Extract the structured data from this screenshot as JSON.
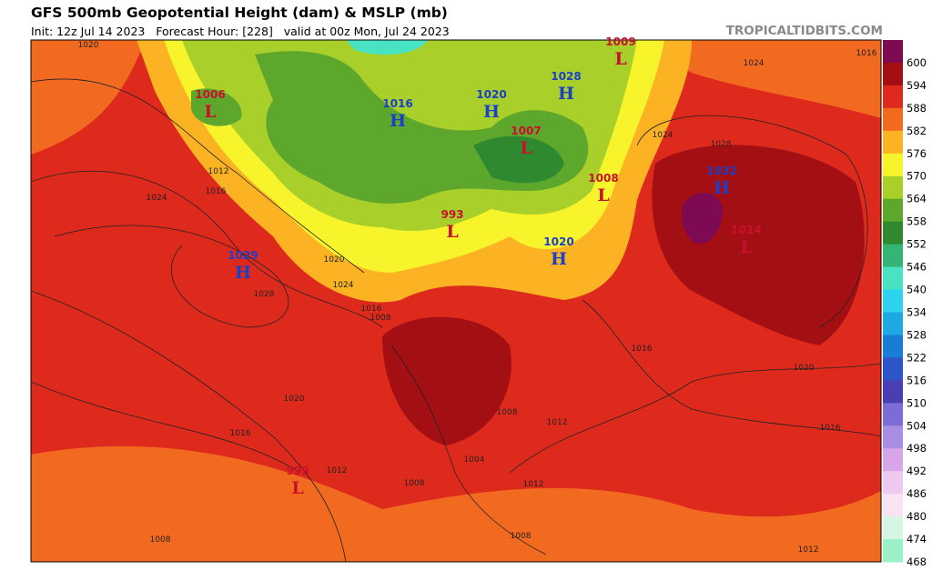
{
  "header": {
    "title": "GFS 500mb Geopotential Height (dam) & MSLP (mb)",
    "subtitle": "Init: 12z Jul 14 2023   Forecast Hour: [228]   valid at 00z Mon, Jul 24 2023",
    "credit": "TROPICALTIDBITS.COM"
  },
  "colorbar": {
    "levels": [
      {
        "label": "600",
        "color": "#7d0a52"
      },
      {
        "label": "594",
        "color": "#a30f12"
      },
      {
        "label": "588",
        "color": "#de2a1c"
      },
      {
        "label": "582",
        "color": "#f26a20"
      },
      {
        "label": "576",
        "color": "#fbb324"
      },
      {
        "label": "570",
        "color": "#f7f42c"
      },
      {
        "label": "564",
        "color": "#a9cf2a"
      },
      {
        "label": "558",
        "color": "#5da72d"
      },
      {
        "label": "552",
        "color": "#2f8a2f"
      },
      {
        "label": "546",
        "color": "#35b575"
      },
      {
        "label": "540",
        "color": "#48e3c2"
      },
      {
        "label": "534",
        "color": "#2fd2ee"
      },
      {
        "label": "528",
        "color": "#1ea9e3"
      },
      {
        "label": "522",
        "color": "#1a7dd5"
      },
      {
        "label": "516",
        "color": "#2d55c8"
      },
      {
        "label": "510",
        "color": "#4a3fb2"
      },
      {
        "label": "504",
        "color": "#7c6cd5"
      },
      {
        "label": "498",
        "color": "#a88de2"
      },
      {
        "label": "492",
        "color": "#d7a5e8"
      },
      {
        "label": "486",
        "color": "#efc8f0"
      },
      {
        "label": "480",
        "color": "#f7e3f4"
      },
      {
        "label": "474",
        "color": "#d6f5e4"
      },
      {
        "label": "468",
        "color": "#9cf0c8"
      }
    ]
  },
  "centers": [
    {
      "letter": "L",
      "value": "1006"
    },
    {
      "letter": "H",
      "value": "1016"
    },
    {
      "letter": "H",
      "value": "1020"
    },
    {
      "letter": "H",
      "value": "1028"
    },
    {
      "letter": "L",
      "value": "1009"
    },
    {
      "letter": "L",
      "value": "1007"
    },
    {
      "letter": "L",
      "value": "1008"
    },
    {
      "letter": "H",
      "value": "1032"
    },
    {
      "letter": "L",
      "value": "1014"
    },
    {
      "letter": "L",
      "value": "993"
    },
    {
      "letter": "H",
      "value": "1020"
    },
    {
      "letter": "H",
      "value": "1029"
    },
    {
      "letter": "L",
      "value": "999"
    }
  ],
  "isobar_labels": [
    "1020",
    "1024",
    "1012",
    "1016",
    "1028",
    "1020",
    "1024",
    "1016",
    "1008",
    "1020",
    "1016",
    "1012",
    "1008",
    "1008",
    "1004",
    "1008",
    "1012",
    "1012",
    "1008",
    "1016",
    "1020",
    "1016",
    "1012",
    "1024",
    "1028",
    "1024",
    "1016"
  ]
}
